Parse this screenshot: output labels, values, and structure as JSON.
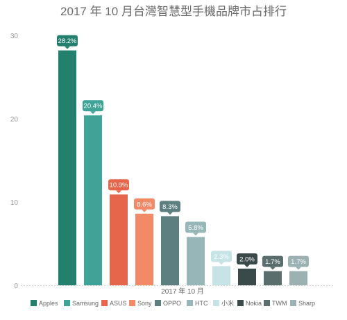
{
  "chart_data": {
    "type": "bar",
    "title": "2017 年 10 月台灣智慧型手機品牌市占排行",
    "categories": [
      "2017 年 10 月"
    ],
    "xlabel": "",
    "ylabel": "",
    "ylim": [
      0,
      30
    ],
    "yticks": [
      0,
      10,
      20,
      30
    ],
    "grid": false,
    "legend_position": "bottom",
    "series": [
      {
        "name": "Apples",
        "values": [
          28.2
        ],
        "label": "28.2%",
        "color": "#23806f"
      },
      {
        "name": "Samsung",
        "values": [
          20.4
        ],
        "label": "20.4%",
        "color": "#3fa497"
      },
      {
        "name": "ASUS",
        "values": [
          10.9
        ],
        "label": "10.9%",
        "color": "#e5664a"
      },
      {
        "name": "Sony",
        "values": [
          8.6
        ],
        "label": "8.6%",
        "color": "#f28a68"
      },
      {
        "name": "OPPO",
        "values": [
          8.3
        ],
        "label": "8.3%",
        "color": "#5e7f80"
      },
      {
        "name": "HTC",
        "values": [
          5.8
        ],
        "label": "5.8%",
        "color": "#97b6b8"
      },
      {
        "name": "小米",
        "values": [
          2.3
        ],
        "label": "2.3%",
        "color": "#c6e3e6"
      },
      {
        "name": "Nokia",
        "values": [
          2.0
        ],
        "label": "2.0%",
        "color": "#3a4a4a"
      },
      {
        "name": "TWM",
        "values": [
          1.7
        ],
        "label": "1.7%",
        "color": "#5b6e6e"
      },
      {
        "name": "Sharp",
        "values": [
          1.7
        ],
        "label": "1.7%",
        "color": "#9cb2b2"
      }
    ]
  }
}
